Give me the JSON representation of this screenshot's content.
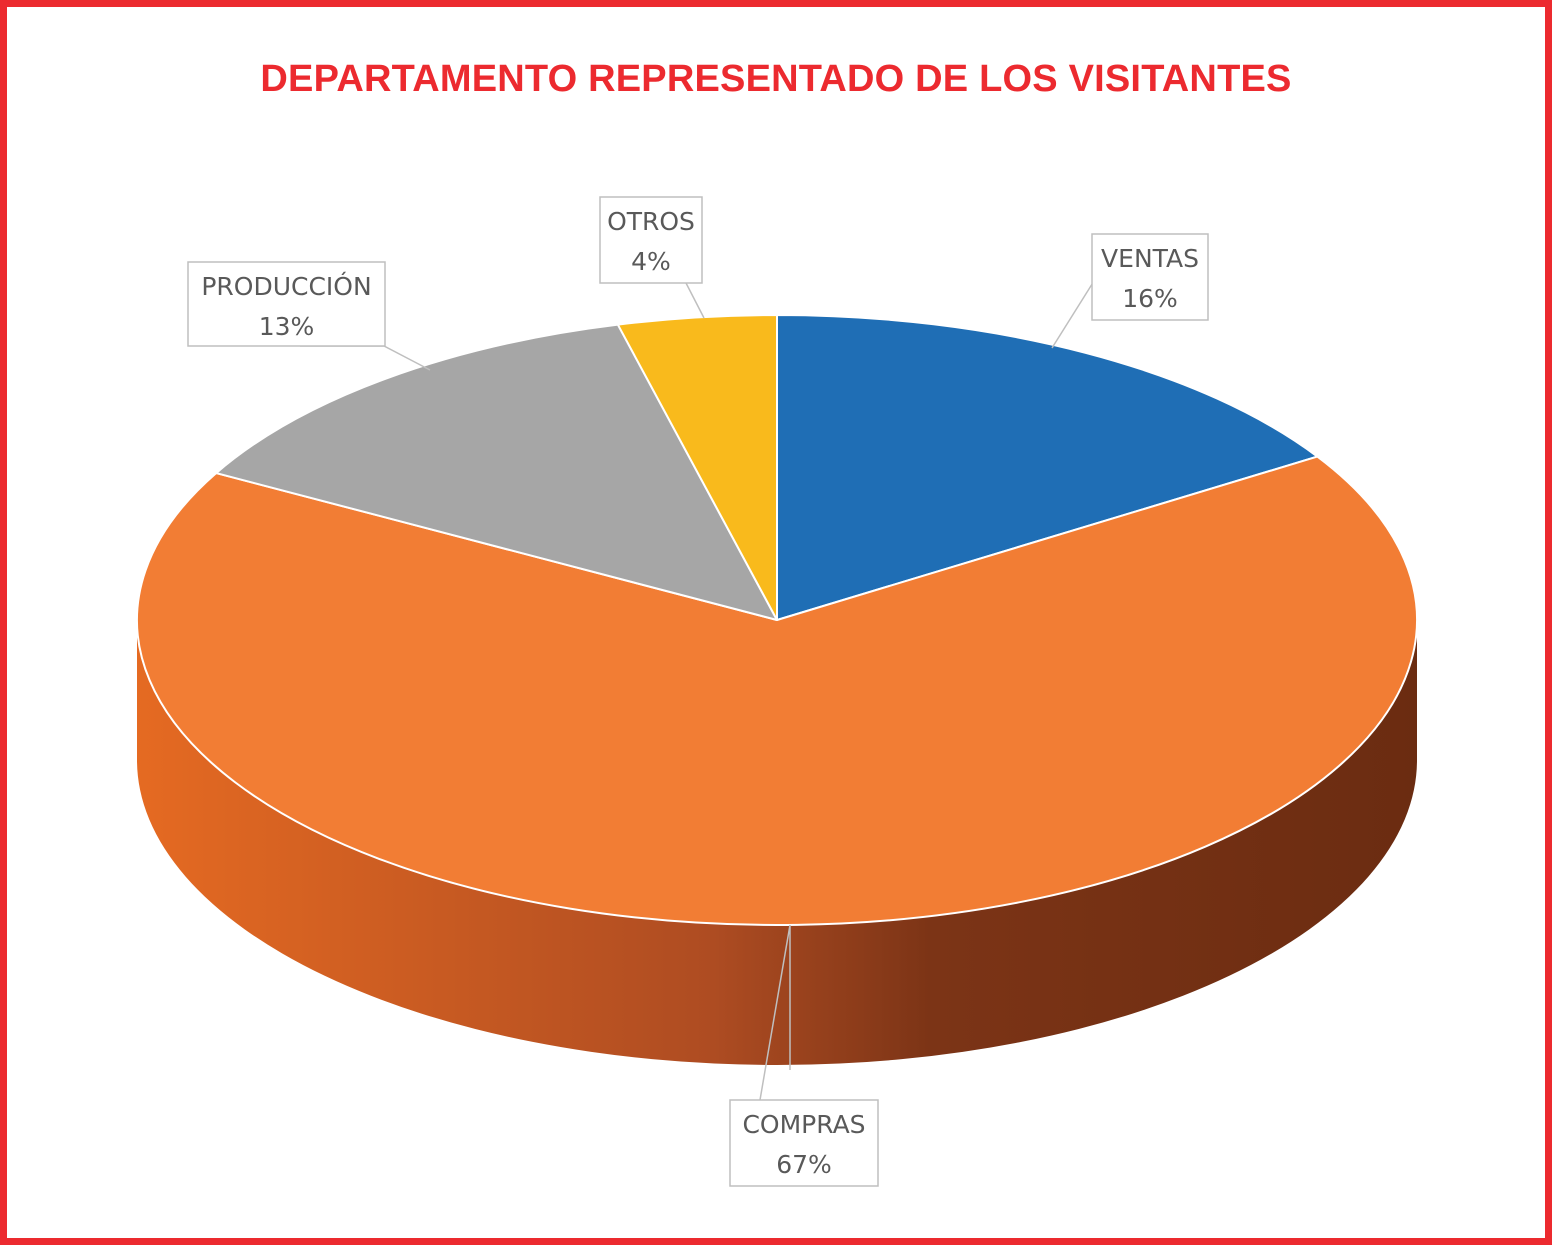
{
  "chart_data": {
    "type": "pie",
    "title": "DEPARTAMENTO REPRESENTADO DE LOS VISITANTES",
    "style": "3d",
    "categories": [
      "VENTAS",
      "COMPRAS",
      "PRODUCCIÓN",
      "OTROS"
    ],
    "values": [
      16,
      67,
      13,
      4
    ],
    "value_labels": [
      "16%",
      "67%",
      "13%",
      "4%"
    ],
    "colors": [
      "#1F6EB5",
      "#F27D34",
      "#A6A6A6",
      "#F9BA1C"
    ]
  },
  "frame": {
    "border_color": "#EC2A2F"
  }
}
